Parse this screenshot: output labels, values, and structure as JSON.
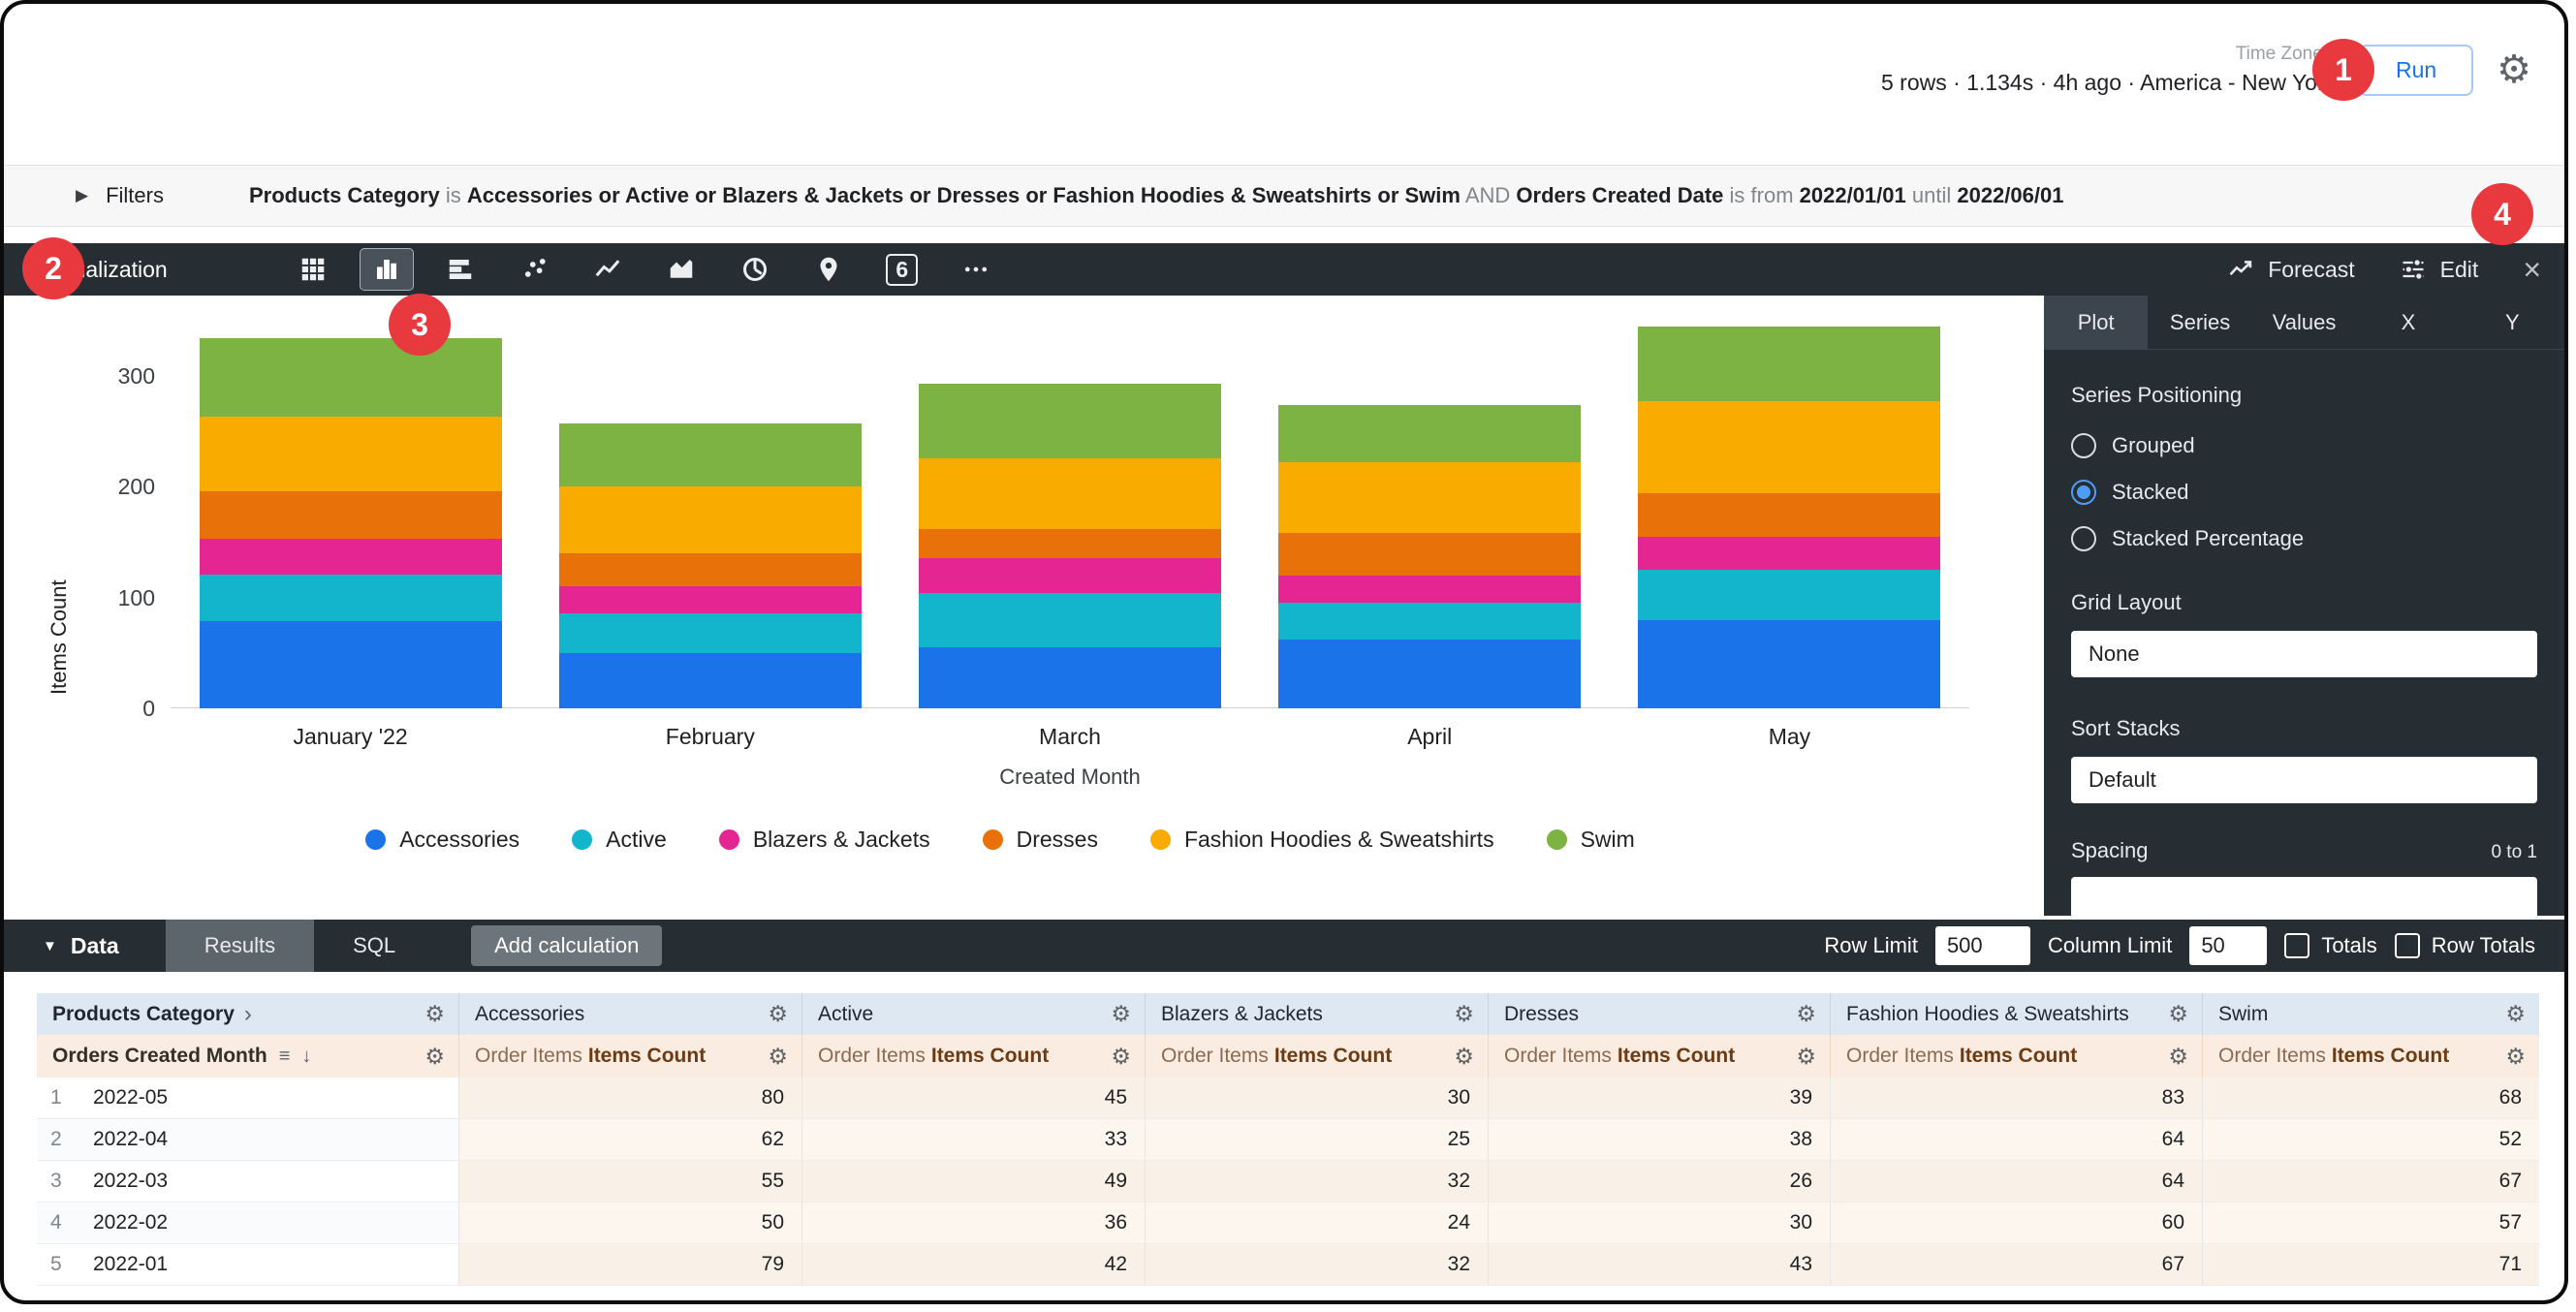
{
  "topbar": {
    "time_zone_label": "Time Zone",
    "stats": "5 rows · 1.134s · 4h ago · America - New York",
    "run_label": "Run"
  },
  "badges": [
    {
      "label": "1"
    },
    {
      "label": "2"
    },
    {
      "label": "3"
    },
    {
      "label": "4"
    }
  ],
  "filters": {
    "title": "Filters",
    "segments": [
      {
        "text": "Products Category",
        "strong": true
      },
      {
        "text": " is ",
        "strong": false
      },
      {
        "text": "Accessories or Active or Blazers & Jackets or Dresses or Fashion Hoodies & Sweatshirts or Swim",
        "strong": true
      },
      {
        "text": " AND ",
        "strong": false
      },
      {
        "text": "Orders Created Date",
        "strong": true
      },
      {
        "text": " is from ",
        "strong": false
      },
      {
        "text": "2022/01/01",
        "strong": true
      },
      {
        "text": " until ",
        "strong": false
      },
      {
        "text": "2022/06/01",
        "strong": true
      }
    ]
  },
  "visualization": {
    "label": "Visualization",
    "chart_types": [
      {
        "name": "table-icon",
        "selected": false
      },
      {
        "name": "column-chart-icon",
        "selected": true
      },
      {
        "name": "bar-chart-icon",
        "selected": false
      },
      {
        "name": "scatter-icon",
        "selected": false
      },
      {
        "name": "line-chart-icon",
        "selected": false
      },
      {
        "name": "area-chart-icon",
        "selected": false
      },
      {
        "name": "pie-chart-icon",
        "selected": false
      },
      {
        "name": "map-icon",
        "selected": false
      },
      {
        "name": "single-value-icon",
        "selected": false,
        "label": "6"
      },
      {
        "name": "more-icon",
        "selected": false
      }
    ],
    "forecast_label": "Forecast",
    "edit_label": "Edit"
  },
  "edit_panel": {
    "tabs": [
      {
        "label": "Plot",
        "active": true
      },
      {
        "label": "Series",
        "active": false
      },
      {
        "label": "Values",
        "active": false
      },
      {
        "label": "X",
        "active": false
      },
      {
        "label": "Y",
        "active": false
      }
    ],
    "series_positioning": {
      "label": "Series Positioning",
      "options": [
        {
          "label": "Grouped",
          "selected": false
        },
        {
          "label": "Stacked",
          "selected": true
        },
        {
          "label": "Stacked Percentage",
          "selected": false
        }
      ]
    },
    "grid_layout": {
      "label": "Grid Layout",
      "value": "None"
    },
    "sort_stacks": {
      "label": "Sort Stacks",
      "value": "Default"
    },
    "spacing": {
      "label": "Spacing",
      "range": "0 to 1"
    }
  },
  "chart_data": {
    "type": "bar",
    "stacked": true,
    "xlabel": "Created Month",
    "ylabel": "Items Count",
    "categories": [
      "January '22",
      "February",
      "March",
      "April",
      "May"
    ],
    "series": [
      {
        "name": "Accessories",
        "color": "#1A73E8",
        "values": [
          79,
          50,
          55,
          62,
          80
        ]
      },
      {
        "name": "Active",
        "color": "#12B5CB",
        "values": [
          42,
          36,
          49,
          33,
          45
        ]
      },
      {
        "name": "Blazers & Jackets",
        "color": "#E52592",
        "values": [
          32,
          24,
          32,
          25,
          30
        ]
      },
      {
        "name": "Dresses",
        "color": "#E8710A",
        "values": [
          43,
          30,
          26,
          38,
          39
        ]
      },
      {
        "name": "Fashion Hoodies & Sweatshirts",
        "color": "#F9AB00",
        "values": [
          67,
          60,
          64,
          64,
          83
        ]
      },
      {
        "name": "Swim",
        "color": "#7CB342",
        "values": [
          71,
          57,
          67,
          52,
          68
        ]
      }
    ],
    "yticks": [
      0,
      100,
      200,
      300
    ],
    "ylim": [
      0,
      350
    ],
    "legend_position": "bottom",
    "grid": false
  },
  "data_bar": {
    "label": "Data",
    "tabs": [
      {
        "label": "Results",
        "active": true
      },
      {
        "label": "SQL",
        "active": false
      }
    ],
    "add_calculation_label": "Add calculation",
    "row_limit_label": "Row Limit",
    "row_limit_value": "500",
    "column_limit_label": "Column Limit",
    "column_limit_value": "50",
    "totals_label": "Totals",
    "row_totals_label": "Row Totals"
  },
  "table": {
    "dimension_header": "Products Category",
    "subheader": "Orders Created Month",
    "measure_prefix": "Order Items",
    "measure_name": "Items Count",
    "groups": [
      "Accessories",
      "Active",
      "Blazers & Jackets",
      "Dresses",
      "Fashion Hoodies & Sweatshirts",
      "Swim"
    ],
    "rows": [
      {
        "index": "1",
        "dimension": "2022-05",
        "values": [
          "80",
          "45",
          "30",
          "39",
          "83",
          "68"
        ]
      },
      {
        "index": "2",
        "dimension": "2022-04",
        "values": [
          "62",
          "33",
          "25",
          "38",
          "64",
          "52"
        ]
      },
      {
        "index": "3",
        "dimension": "2022-03",
        "values": [
          "55",
          "49",
          "32",
          "26",
          "64",
          "67"
        ]
      },
      {
        "index": "4",
        "dimension": "2022-02",
        "values": [
          "50",
          "36",
          "24",
          "30",
          "60",
          "57"
        ]
      },
      {
        "index": "5",
        "dimension": "2022-01",
        "values": [
          "79",
          "42",
          "32",
          "43",
          "67",
          "71"
        ]
      }
    ]
  }
}
